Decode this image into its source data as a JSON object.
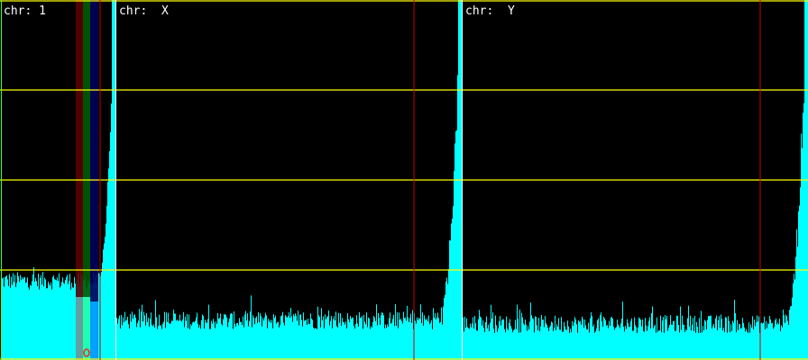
{
  "colors": {
    "background": "#000000",
    "coverage": "#00ffff",
    "gridline": "#ffff00",
    "separator": "#ffffff",
    "marker_line": "#cc0000",
    "band_red": "#5a0000",
    "band_green": "#005a00",
    "band_blue": "#00005a",
    "cursor_marker": "#ff2020"
  },
  "panels": [
    {
      "label": "chr: 1",
      "baseline_fraction": 0.22
    },
    {
      "label": "chr:  X",
      "baseline_fraction": 0.11
    },
    {
      "label": "chr:  Y",
      "baseline_fraction": 0.1
    }
  ]
}
